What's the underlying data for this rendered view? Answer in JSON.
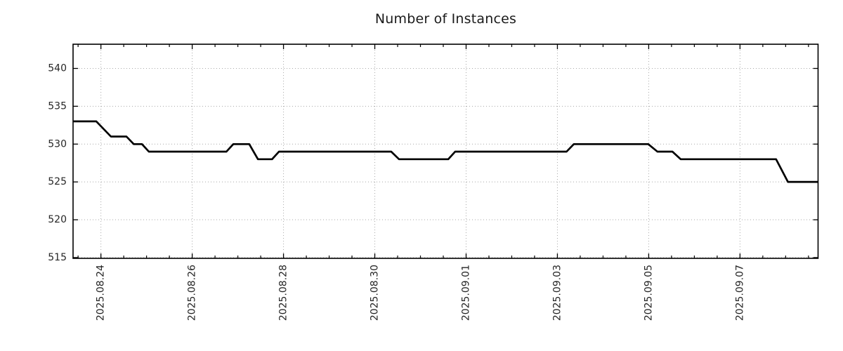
{
  "chart_data": {
    "type": "line",
    "title": "Number of Instances",
    "xlabel": "",
    "ylabel": "",
    "x_unit": "days since 2025.08.24 00:00",
    "xlim": [
      -0.61,
      15.71
    ],
    "ylim": [
      514.9,
      543.2
    ],
    "yticks": [
      515,
      520,
      525,
      530,
      535,
      540
    ],
    "xticks": [
      {
        "d": 0,
        "label": "2025.08.24"
      },
      {
        "d": 2,
        "label": "2025.08.26"
      },
      {
        "d": 4,
        "label": "2025.08.28"
      },
      {
        "d": 6,
        "label": "2025.08.30"
      },
      {
        "d": 8,
        "label": "2025.09.01"
      },
      {
        "d": 10,
        "label": "2025.09.03"
      },
      {
        "d": 12,
        "label": "2025.09.05"
      },
      {
        "d": 14,
        "label": "2025.09.07"
      }
    ],
    "minor_xtick_step": 0.5,
    "grid": "dotted, at major ticks only",
    "legend": "none",
    "series": [
      {
        "name": "instances",
        "points": [
          [
            -0.61,
            533
          ],
          [
            -0.1,
            533
          ],
          [
            0.22,
            531
          ],
          [
            0.56,
            531
          ],
          [
            0.72,
            530
          ],
          [
            0.9,
            530
          ],
          [
            1.05,
            529
          ],
          [
            2.75,
            529
          ],
          [
            2.9,
            530
          ],
          [
            3.25,
            530
          ],
          [
            3.44,
            528
          ],
          [
            3.75,
            528
          ],
          [
            3.9,
            529
          ],
          [
            6.36,
            529
          ],
          [
            6.53,
            528
          ],
          [
            7.61,
            528
          ],
          [
            7.76,
            529
          ],
          [
            10.2,
            529
          ],
          [
            10.36,
            530
          ],
          [
            11.99,
            530
          ],
          [
            12.19,
            529
          ],
          [
            12.52,
            529
          ],
          [
            12.7,
            528
          ],
          [
            14.79,
            528
          ],
          [
            15.05,
            525
          ],
          [
            15.71,
            525
          ]
        ]
      }
    ],
    "colors": {
      "line": "#000000",
      "grid": "#a8a8a8",
      "axis": "#000000",
      "text": "#262626",
      "background": "#ffffff"
    }
  }
}
